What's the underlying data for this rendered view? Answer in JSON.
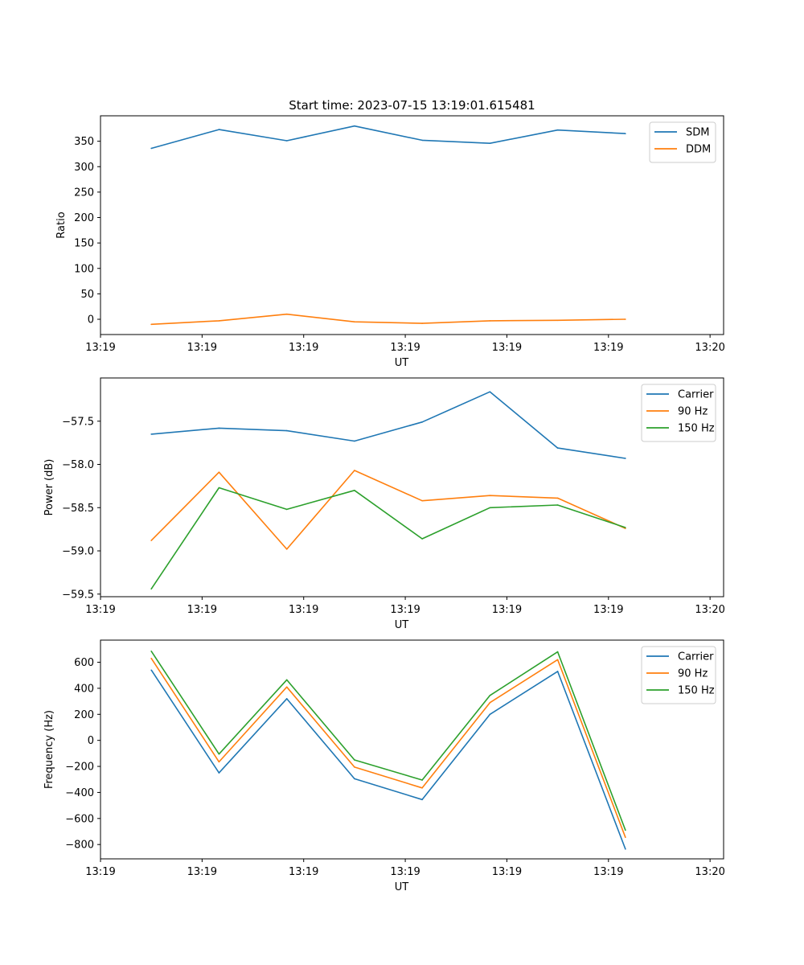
{
  "figure_title": "Start time: 2023-07-15 13:19:01.615481",
  "chart_data": [
    {
      "type": "line",
      "title": "Start time: 2023-07-15 13:19:01.615481",
      "xlabel": "UT",
      "ylabel": "Ratio",
      "xlim": [
        0,
        9.2
      ],
      "x": [
        0.75,
        1.75,
        2.75,
        3.75,
        4.75,
        5.75,
        6.75,
        7.75
      ],
      "xtick_values": [
        0,
        1.5,
        3,
        4.5,
        6,
        7.5,
        9
      ],
      "xtick_labels": [
        "13:19",
        "13:19",
        "13:19",
        "13:19",
        "13:19",
        "13:19",
        "13:20"
      ],
      "ylim": [
        -30,
        400
      ],
      "ytick_values": [
        0,
        50,
        100,
        150,
        200,
        250,
        300,
        350
      ],
      "ytick_labels": [
        "0",
        "50",
        "100",
        "150",
        "200",
        "250",
        "300",
        "350"
      ],
      "legend_position": "top-right",
      "series": [
        {
          "name": "SDM",
          "color": "#1f77b4",
          "values": [
            336,
            373,
            351,
            380,
            352,
            346,
            372,
            365
          ]
        },
        {
          "name": "DDM",
          "color": "#ff7f0e",
          "values": [
            -10,
            -3,
            10,
            -5,
            -8,
            -3,
            -2,
            0
          ]
        }
      ]
    },
    {
      "type": "line",
      "title": "",
      "xlabel": "UT",
      "ylabel": "Power (dB)",
      "xlim": [
        0,
        9.2
      ],
      "x": [
        0.75,
        1.75,
        2.75,
        3.75,
        4.75,
        5.75,
        6.75,
        7.75
      ],
      "xtick_values": [
        0,
        1.5,
        3,
        4.5,
        6,
        7.5,
        9
      ],
      "xtick_labels": [
        "13:19",
        "13:19",
        "13:19",
        "13:19",
        "13:19",
        "13:19",
        "13:20"
      ],
      "ylim": [
        -59.53,
        -57.0
      ],
      "ytick_values": [
        -59.5,
        -59.0,
        -58.5,
        -58.0,
        -57.5
      ],
      "ytick_labels": [
        "−59.5",
        "−59.0",
        "−58.5",
        "−58.0",
        "−57.5"
      ],
      "legend_position": "top-right",
      "series": [
        {
          "name": "Carrier",
          "color": "#1f77b4",
          "values": [
            -57.65,
            -57.58,
            -57.61,
            -57.73,
            -57.51,
            -57.16,
            -57.81,
            -57.93
          ]
        },
        {
          "name": "90 Hz",
          "color": "#ff7f0e",
          "values": [
            -58.88,
            -58.09,
            -58.98,
            -58.07,
            -58.42,
            -58.36,
            -58.39,
            -58.74
          ]
        },
        {
          "name": "150 Hz",
          "color": "#2ca02c",
          "values": [
            -59.44,
            -58.27,
            -58.52,
            -58.3,
            -58.86,
            -58.5,
            -58.47,
            -58.73
          ]
        }
      ]
    },
    {
      "type": "line",
      "title": "",
      "xlabel": "UT",
      "ylabel": "Frequency (Hz)",
      "xlim": [
        0,
        9.2
      ],
      "x": [
        0.75,
        1.75,
        2.75,
        3.75,
        4.75,
        5.75,
        6.75,
        7.75
      ],
      "xtick_values": [
        0,
        1.5,
        3,
        4.5,
        6,
        7.5,
        9
      ],
      "xtick_labels": [
        "13:19",
        "13:19",
        "13:19",
        "13:19",
        "13:19",
        "13:19",
        "13:20"
      ],
      "ylim": [
        -910,
        770
      ],
      "ytick_values": [
        -800,
        -600,
        -400,
        -200,
        0,
        200,
        400,
        600
      ],
      "ytick_labels": [
        "−800",
        "−600",
        "−400",
        "−200",
        "0",
        "200",
        "400",
        "600"
      ],
      "legend_position": "top-right",
      "series": [
        {
          "name": "Carrier",
          "color": "#1f77b4",
          "values": [
            540,
            -250,
            320,
            -295,
            -455,
            200,
            530,
            -835
          ]
        },
        {
          "name": "90 Hz",
          "color": "#ff7f0e",
          "values": [
            630,
            -165,
            410,
            -205,
            -365,
            290,
            620,
            -745
          ]
        },
        {
          "name": "150 Hz",
          "color": "#2ca02c",
          "values": [
            685,
            -105,
            465,
            -150,
            -305,
            345,
            680,
            -690
          ]
        }
      ]
    }
  ]
}
